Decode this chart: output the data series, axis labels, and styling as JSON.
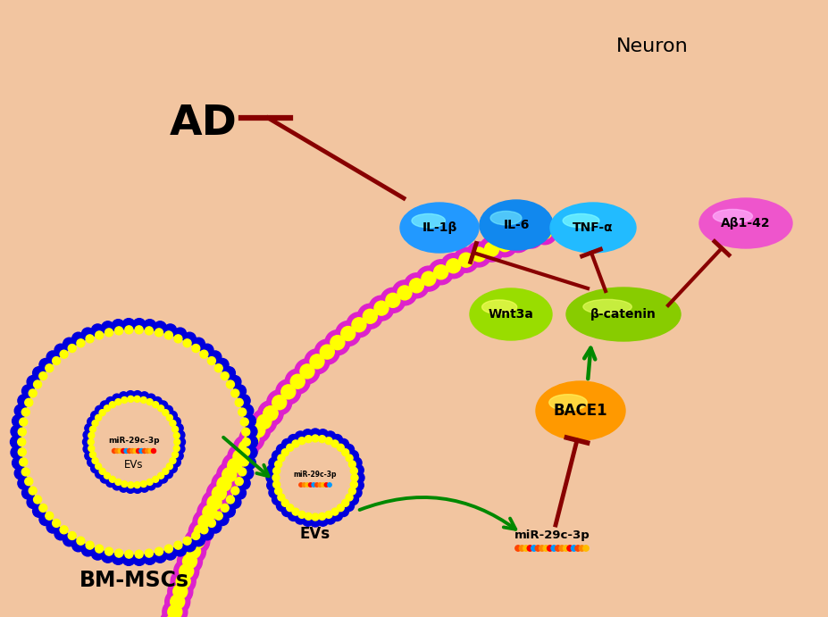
{
  "bg_color": "#F2C5A0",
  "magenta": "#DD22CC",
  "yellow": "#FFFF00",
  "blue_dot": "#0000DD",
  "green_arrow": "#008800",
  "dark_red": "#880000",
  "il1b_color": "#2299FF",
  "il6_color": "#1188EE",
  "tnfa_color": "#22BBFF",
  "ab_color": "#EE55CC",
  "wnt3a_color": "#99DD00",
  "bcatenin_color": "#88CC00",
  "bace1_color": "#FF9900",
  "neuron_label": "Neuron",
  "ad_label": "AD",
  "bm_msc_label": "BM-MSCs",
  "ev_label": "EVs",
  "mir_label": "miR-29c-3p",
  "il1b_label": "IL-1β",
  "il6_label": "IL-6",
  "tnfa_label": "TNF-α",
  "ab_label": "Aβ1-42",
  "wnt3a_label": "Wnt3a",
  "bcatenin_label": "β-catenin",
  "bace1_label": "BACE1",
  "mir_dot_colors": [
    "#FF4400",
    "#FF8800",
    "#FFBB00",
    "#FF0000",
    "#0099FF",
    "#FF4400",
    "#FF8800",
    "#FFBB00",
    "#FF0000",
    "#0099FF",
    "#FF4400",
    "#FF8800",
    "#FFBB00",
    "#FF0000",
    "#0099FF",
    "#FF4400",
    "#FF8800",
    "#FFBB00"
  ],
  "figw": 9.27,
  "figh": 6.91,
  "dpi": 100
}
